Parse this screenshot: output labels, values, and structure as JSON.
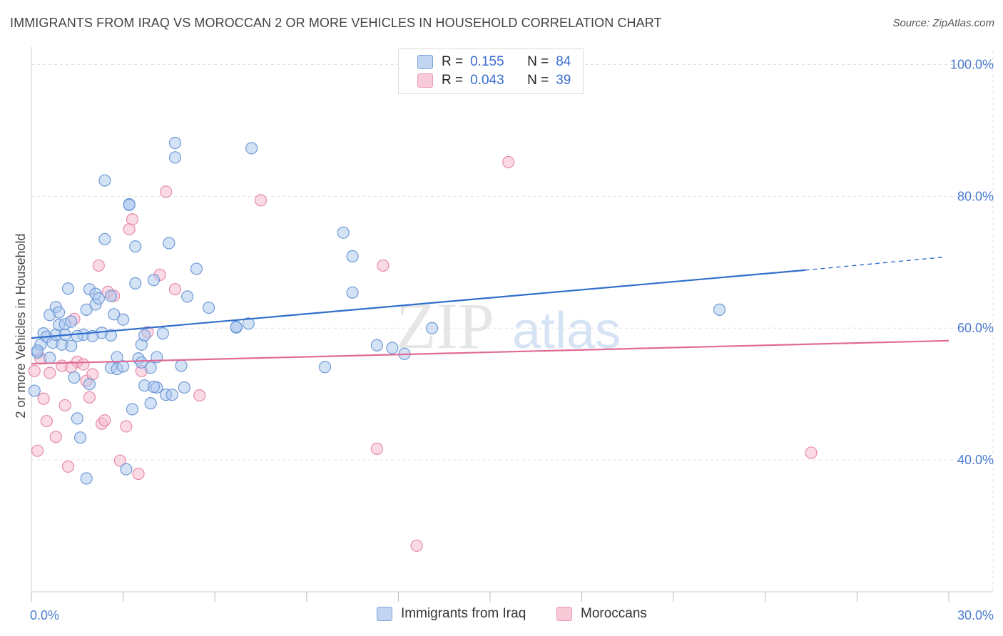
{
  "title": "IMMIGRANTS FROM IRAQ VS MOROCCAN 2 OR MORE VEHICLES IN HOUSEHOLD CORRELATION CHART",
  "source": "Source: ZipAtlas.com",
  "watermark": {
    "zip": "ZIP",
    "atlas": "atlas"
  },
  "legend_top": [
    {
      "r_label": "R =",
      "r_value": "0.155",
      "n_label": "N =",
      "n_value": "84"
    },
    {
      "r_label": "R =",
      "r_value": "0.043",
      "n_label": "N =",
      "n_value": "39"
    }
  ],
  "colors": {
    "blue_fill": "#a9c6ee",
    "blue_stroke": "#6f9ad6",
    "blue_line": "#2f6fcb",
    "pink_fill": "#f5b8cb",
    "pink_stroke": "#e68aa8",
    "pink_line": "#e06a95",
    "tick_text": "#4a7bd0",
    "grid": "#e1e1e1"
  },
  "chart_data": {
    "type": "scatter",
    "title": "IMMIGRANTS FROM IRAQ VS MOROCCAN 2 OR MORE VEHICLES IN HOUSEHOLD CORRELATION CHART",
    "xlabel": "",
    "ylabel": "2 or more Vehicles in Household",
    "xlim": [
      0,
      30
    ],
    "ylim": [
      20,
      102
    ],
    "x_tick_labels": [
      {
        "value": 0,
        "label": "0.0%"
      },
      {
        "value": 30,
        "label": "30.0%"
      }
    ],
    "y_tick_labels": [
      {
        "value": 100,
        "label": "100.0%"
      },
      {
        "value": 80,
        "label": "80.0%"
      },
      {
        "value": 60,
        "label": "60.0%"
      },
      {
        "value": 40,
        "label": "40.0%"
      }
    ],
    "y_gridlines": [
      100,
      80,
      60,
      40
    ],
    "legend_position": "bottom",
    "series": [
      {
        "name": "Immigrants from Iraq",
        "color": "blue",
        "trend": {
          "x0": 0,
          "y0": 58.5,
          "x1": 25.3,
          "y1": 68.8,
          "dash_to_x": 29.9,
          "dash_to_y": 70.8
        },
        "points": [
          [
            0.2,
            56.3
          ],
          [
            0.3,
            57.5
          ],
          [
            0.4,
            59.2
          ],
          [
            0.5,
            58.7
          ],
          [
            0.6,
            55.5
          ],
          [
            0.6,
            62.0
          ],
          [
            0.7,
            57.8
          ],
          [
            0.8,
            63.2
          ],
          [
            0.8,
            59.0
          ],
          [
            0.9,
            62.4
          ],
          [
            0.9,
            60.5
          ],
          [
            1.0,
            57.5
          ],
          [
            1.1,
            60.6
          ],
          [
            1.1,
            59.0
          ],
          [
            1.2,
            66.0
          ],
          [
            1.3,
            57.3
          ],
          [
            1.3,
            61.0
          ],
          [
            1.4,
            52.5
          ],
          [
            1.5,
            46.3
          ],
          [
            1.6,
            43.4
          ],
          [
            1.7,
            59.0
          ],
          [
            1.8,
            62.8
          ],
          [
            1.9,
            51.5
          ],
          [
            1.9,
            65.9
          ],
          [
            2.1,
            63.6
          ],
          [
            2.1,
            65.2
          ],
          [
            2.2,
            64.5
          ],
          [
            2.3,
            59.3
          ],
          [
            2.4,
            73.5
          ],
          [
            2.4,
            82.4
          ],
          [
            2.6,
            64.9
          ],
          [
            2.6,
            58.9
          ],
          [
            2.6,
            54.0
          ],
          [
            2.7,
            62.1
          ],
          [
            2.8,
            53.8
          ],
          [
            2.8,
            55.6
          ],
          [
            3.0,
            54.2
          ],
          [
            3.0,
            61.3
          ],
          [
            3.1,
            38.6
          ],
          [
            3.2,
            78.8
          ],
          [
            3.2,
            78.7
          ],
          [
            3.3,
            47.7
          ],
          [
            3.4,
            72.4
          ],
          [
            3.4,
            66.8
          ],
          [
            3.5,
            55.4
          ],
          [
            3.6,
            57.5
          ],
          [
            3.7,
            58.9
          ],
          [
            3.7,
            51.3
          ],
          [
            3.9,
            54.0
          ],
          [
            3.9,
            48.6
          ],
          [
            4.0,
            67.3
          ],
          [
            4.1,
            51.0
          ],
          [
            4.1,
            55.6
          ],
          [
            4.3,
            59.2
          ],
          [
            4.4,
            49.9
          ],
          [
            4.5,
            72.9
          ],
          [
            4.6,
            49.9
          ],
          [
            4.7,
            88.1
          ],
          [
            4.7,
            85.9
          ],
          [
            4.9,
            54.3
          ],
          [
            5.0,
            51.0
          ],
          [
            5.1,
            64.8
          ],
          [
            5.4,
            69.0
          ],
          [
            5.8,
            63.1
          ],
          [
            6.7,
            60.1
          ],
          [
            7.1,
            60.7
          ],
          [
            7.2,
            87.3
          ],
          [
            9.6,
            54.1
          ],
          [
            10.2,
            74.5
          ],
          [
            10.5,
            70.9
          ],
          [
            10.5,
            65.4
          ],
          [
            11.3,
            57.4
          ],
          [
            11.8,
            57.0
          ],
          [
            12.2,
            56.1
          ],
          [
            13.1,
            60.0
          ],
          [
            22.5,
            62.8
          ],
          [
            1.8,
            37.2
          ],
          [
            0.1,
            50.5
          ],
          [
            0.2,
            56.6
          ],
          [
            1.5,
            58.8
          ],
          [
            2.0,
            58.8
          ],
          [
            3.6,
            54.8
          ],
          [
            4.0,
            51.1
          ],
          [
            6.7,
            60.2
          ]
        ]
      },
      {
        "name": "Moroccans",
        "color": "pink",
        "trend": {
          "x0": 0,
          "y0": 54.6,
          "x1": 30,
          "y1": 58.1
        },
        "points": [
          [
            0.1,
            53.5
          ],
          [
            0.2,
            41.4
          ],
          [
            0.4,
            49.3
          ],
          [
            0.5,
            45.9
          ],
          [
            0.6,
            53.2
          ],
          [
            0.8,
            43.5
          ],
          [
            1.0,
            54.3
          ],
          [
            1.1,
            48.3
          ],
          [
            1.2,
            39.0
          ],
          [
            1.4,
            61.4
          ],
          [
            1.5,
            54.9
          ],
          [
            1.7,
            54.5
          ],
          [
            1.8,
            52.0
          ],
          [
            1.9,
            49.5
          ],
          [
            2.0,
            53.0
          ],
          [
            2.2,
            69.5
          ],
          [
            2.3,
            45.5
          ],
          [
            2.4,
            46.0
          ],
          [
            2.5,
            65.5
          ],
          [
            2.7,
            64.9
          ],
          [
            2.9,
            39.9
          ],
          [
            3.1,
            45.1
          ],
          [
            3.2,
            75.0
          ],
          [
            3.3,
            76.5
          ],
          [
            3.5,
            37.9
          ],
          [
            3.6,
            53.5
          ],
          [
            3.8,
            59.4
          ],
          [
            4.4,
            80.7
          ],
          [
            4.2,
            68.1
          ],
          [
            4.7,
            65.9
          ],
          [
            5.5,
            49.8
          ],
          [
            7.5,
            79.4
          ],
          [
            11.3,
            41.7
          ],
          [
            11.5,
            69.5
          ],
          [
            12.6,
            27.0
          ],
          [
            15.6,
            85.2
          ],
          [
            25.5,
            41.1
          ],
          [
            0.3,
            55.4
          ],
          [
            1.3,
            54.1
          ]
        ]
      }
    ]
  }
}
